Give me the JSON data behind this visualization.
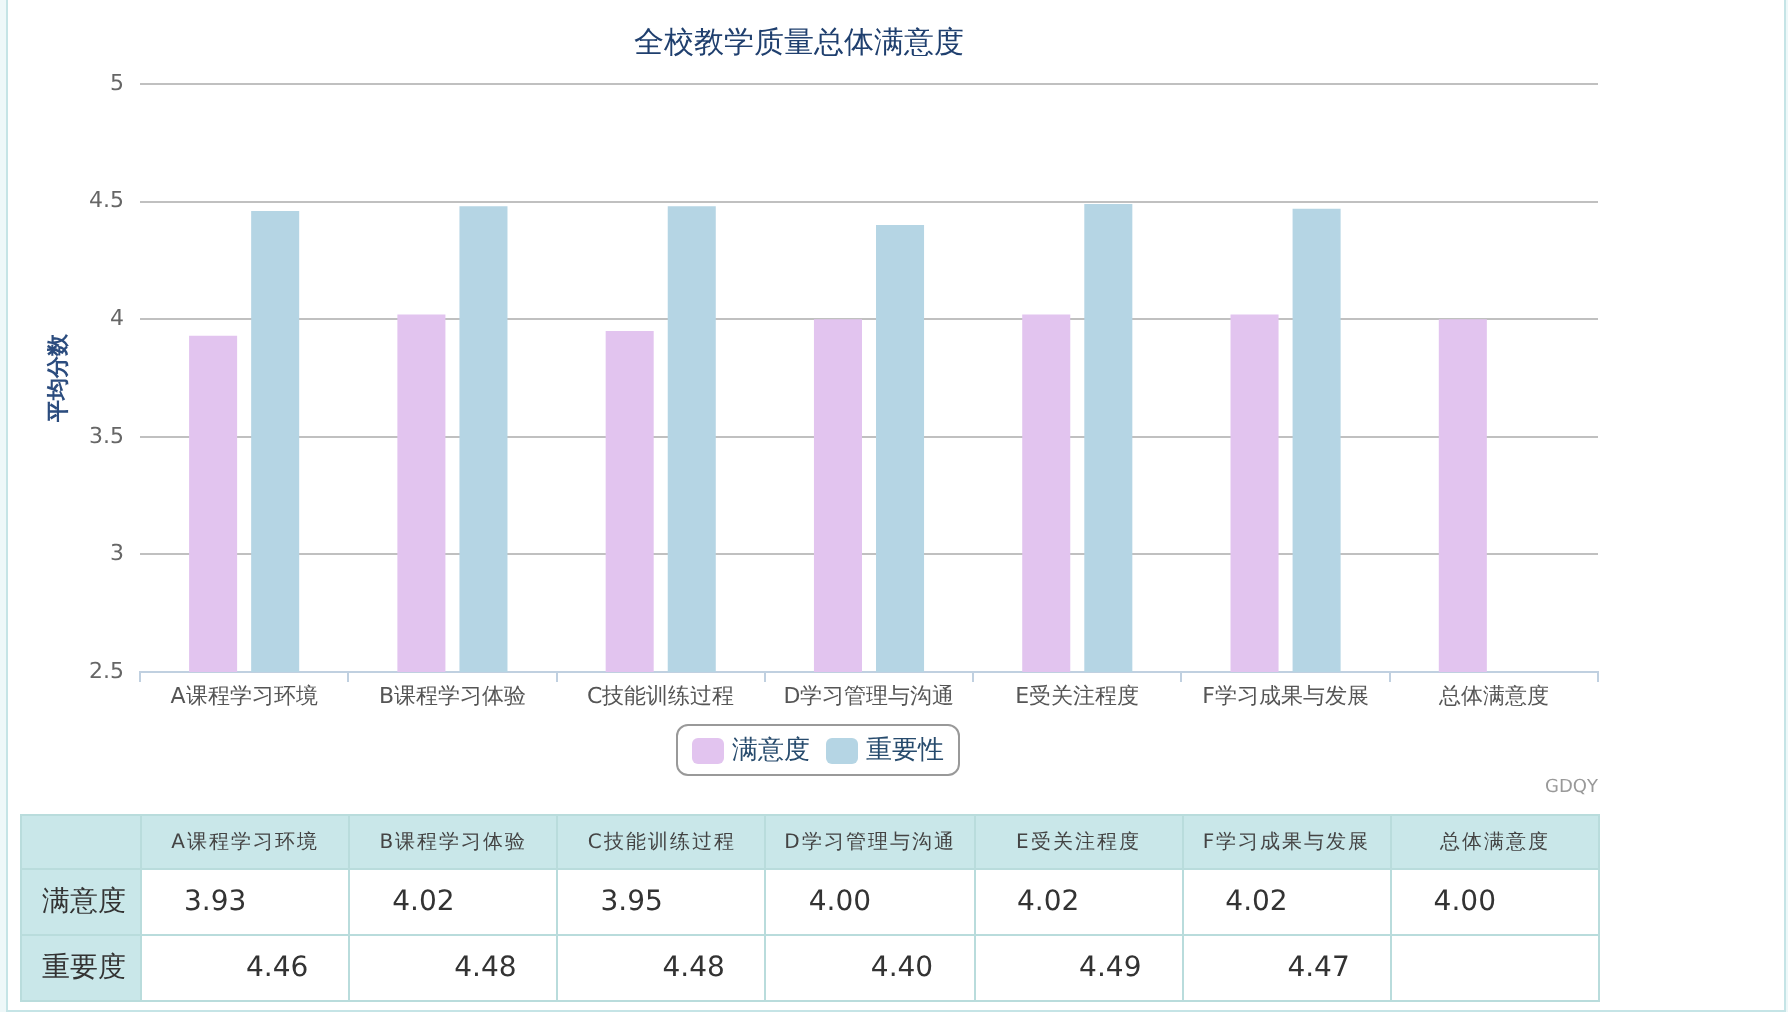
{
  "chart_data": {
    "type": "bar",
    "title": "全校教学质量总体满意度",
    "ylabel": "平均分数",
    "categories": [
      "A课程学习环境",
      "B课程学习体验",
      "C技能训练过程",
      "D学习管理与沟通",
      "E受关注程度",
      "F学习成果与发展",
      "总体满意度"
    ],
    "series": [
      {
        "name": "满意度",
        "color": "#e2c4ef",
        "values": [
          3.93,
          4.02,
          3.95,
          4.0,
          4.02,
          4.02,
          4.0
        ],
        "value_labels": [
          "3.93",
          "4.02",
          "3.95",
          "4.00",
          "4.02",
          "4.02",
          "4.00"
        ]
      },
      {
        "name": "重要性",
        "color": "#b5d5e4",
        "values": [
          4.46,
          4.48,
          4.48,
          4.4,
          4.49,
          4.47,
          null
        ],
        "value_labels": [
          "4.46",
          "4.48",
          "4.48",
          "4.40",
          "4.49",
          "4.47",
          null
        ]
      }
    ],
    "ylim": [
      2.5,
      5
    ],
    "yticks": [
      2.5,
      3,
      3.5,
      4,
      4.5,
      5
    ],
    "grid": "y",
    "legend": "bottom",
    "annotations": [
      "GDQY",
      "满意度",
      "重要度"
    ]
  }
}
